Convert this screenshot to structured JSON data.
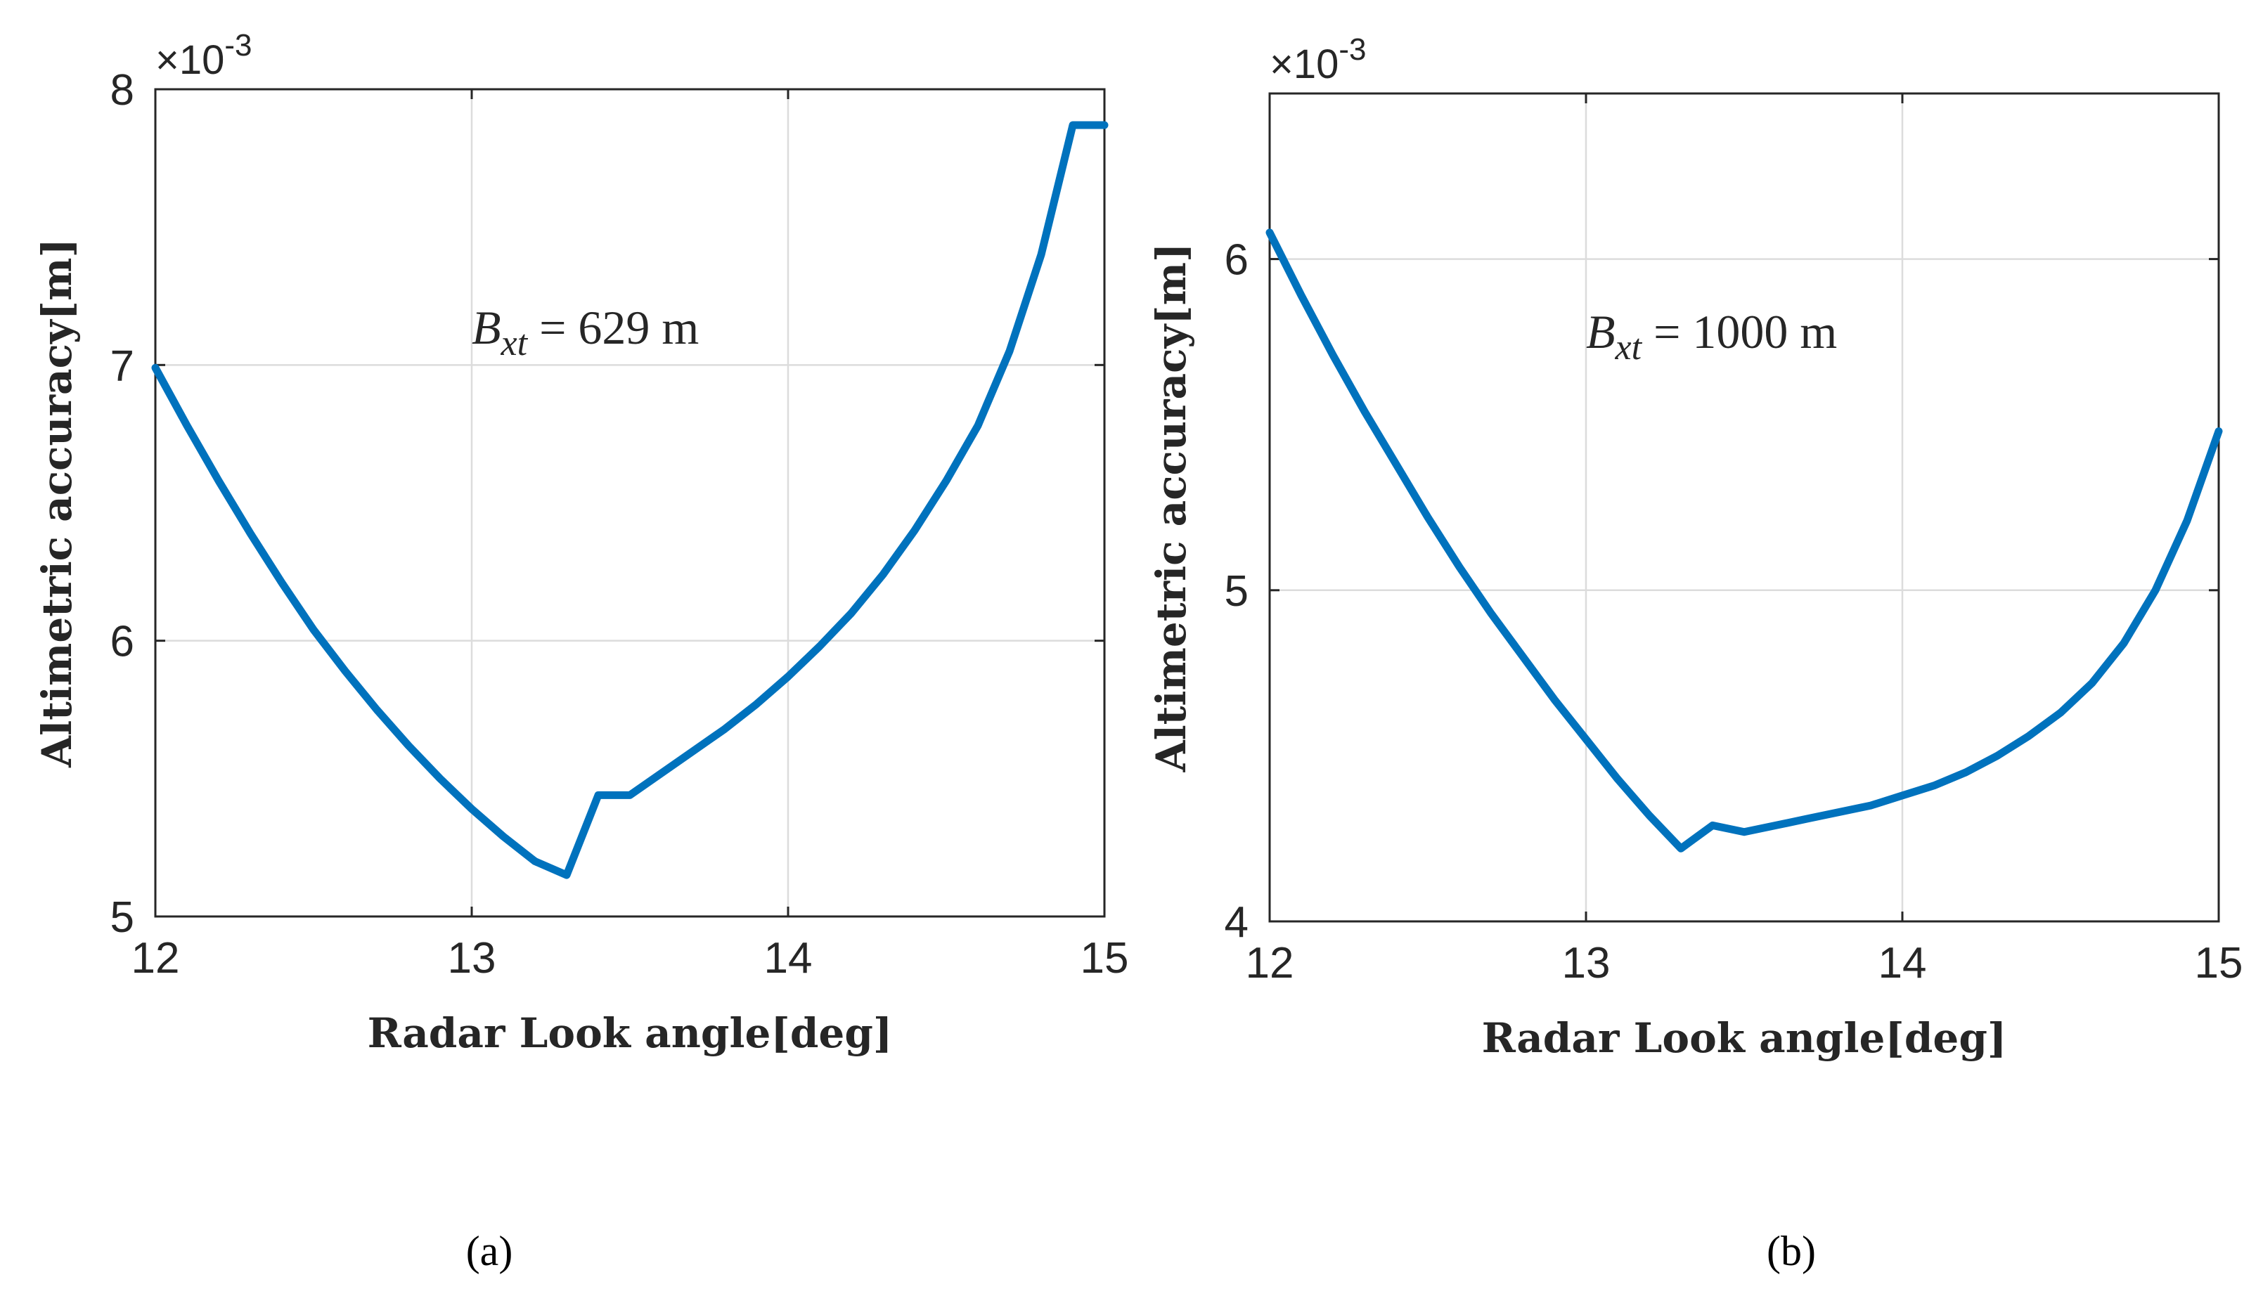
{
  "chart_data": [
    {
      "type": "line",
      "panel_label": "(a)",
      "xlabel": "Radar Look angle[deg]",
      "ylabel": "Altimetric accuracy[m]",
      "multiplier": {
        "base": "×10",
        "exponent": "-3"
      },
      "annotation": {
        "symbol": "B",
        "subscript": "xt",
        "text": " = 629 m"
      },
      "xlim": [
        12,
        15
      ],
      "ylim": [
        5,
        8
      ],
      "xticks": [
        12,
        13,
        14,
        15
      ],
      "yticks": [
        5,
        6,
        7,
        8
      ],
      "grid": true,
      "series": [
        {
          "name": "altimetric accuracy",
          "color": "#0072BD",
          "x": [
            12.0,
            12.1,
            12.2,
            12.3,
            12.4,
            12.5,
            12.6,
            12.7,
            12.8,
            12.9,
            13.0,
            13.1,
            13.2,
            13.3,
            13.4,
            13.5,
            13.6,
            13.7,
            13.8,
            13.9,
            14.0,
            14.1,
            14.2,
            14.3,
            14.4,
            14.5,
            14.6,
            14.7,
            14.8,
            14.9,
            15.0
          ],
          "y": [
            6.99,
            6.78,
            6.58,
            6.39,
            6.21,
            6.04,
            5.89,
            5.75,
            5.62,
            5.5,
            5.39,
            5.29,
            5.2,
            5.15,
            5.44,
            5.44,
            5.52,
            5.6,
            5.68,
            5.77,
            5.87,
            5.98,
            6.1,
            6.24,
            6.4,
            6.58,
            6.78,
            7.05,
            7.4,
            7.87,
            7.87
          ]
        }
      ]
    },
    {
      "type": "line",
      "panel_label": "(b)",
      "xlabel": "Radar Look angle[deg]",
      "ylabel": "Altimetric accuracy[m]",
      "multiplier": {
        "base": "×10",
        "exponent": "-3"
      },
      "annotation": {
        "symbol": "B",
        "subscript": "xt",
        "text": " = 1000 m"
      },
      "xlim": [
        12,
        15
      ],
      "ylim": [
        4,
        6.5
      ],
      "xticks": [
        12,
        13,
        14,
        15
      ],
      "yticks": [
        4,
        5,
        6
      ],
      "grid": true,
      "series": [
        {
          "name": "altimetric accuracy",
          "color": "#0072BD",
          "x": [
            12.0,
            12.1,
            12.2,
            12.3,
            12.4,
            12.5,
            12.6,
            12.7,
            12.8,
            12.9,
            13.0,
            13.1,
            13.2,
            13.3,
            13.4,
            13.5,
            13.6,
            13.7,
            13.8,
            13.9,
            14.0,
            14.1,
            14.2,
            14.3,
            14.4,
            14.5,
            14.6,
            14.7,
            14.8,
            14.9,
            15.0
          ],
          "y": [
            6.08,
            5.89,
            5.71,
            5.54,
            5.38,
            5.22,
            5.07,
            4.93,
            4.8,
            4.67,
            4.55,
            4.43,
            4.32,
            4.22,
            4.29,
            4.27,
            4.29,
            4.31,
            4.33,
            4.35,
            4.38,
            4.41,
            4.45,
            4.5,
            4.56,
            4.63,
            4.72,
            4.84,
            5.0,
            5.21,
            5.48
          ]
        }
      ]
    }
  ]
}
